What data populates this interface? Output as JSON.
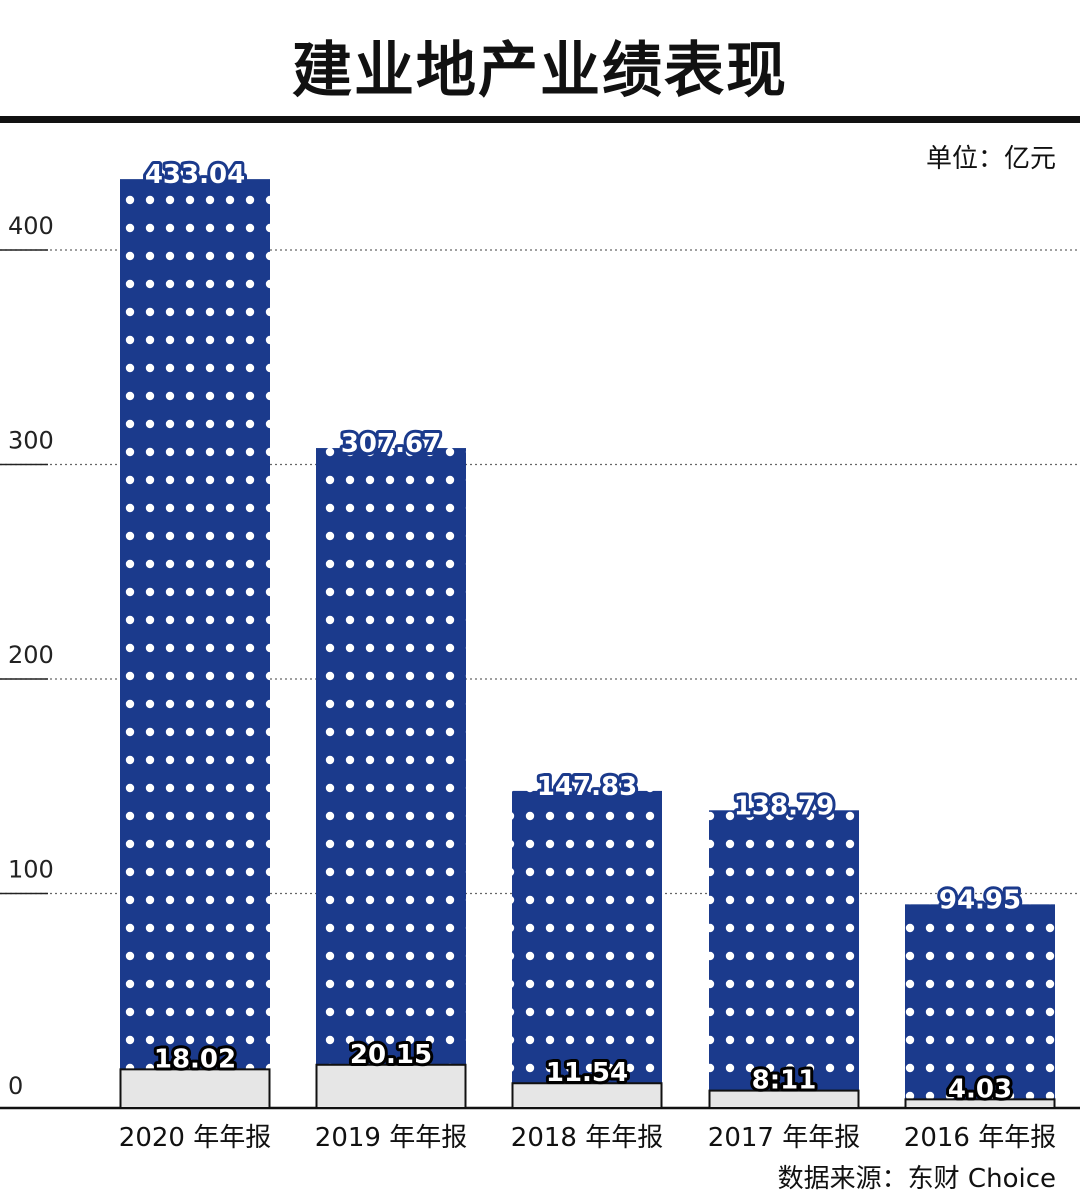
{
  "title": "建业地产业绩表现",
  "unit_label": "单位：亿元",
  "source_label": "数据来源：东财 Choice",
  "colors": {
    "revenue": "#1b3a8c",
    "profit": "#e6e6e6",
    "dots": "#ffffff"
  },
  "chart_data": {
    "type": "bar",
    "categories": [
      "2020 年年报",
      "2019 年年报",
      "2018 年年报",
      "2017 年年报",
      "2016 年年报"
    ],
    "series": [
      {
        "values": [
          433.04,
          307.67,
          147.83,
          138.79,
          94.95
        ]
      },
      {
        "values": [
          18.02,
          20.15,
          11.54,
          8.11,
          4.03
        ]
      }
    ],
    "value_labels": [
      [
        "433.04",
        "307.67",
        "147.83",
        "138.79",
        "94.95"
      ],
      [
        "18.02",
        "20.15",
        "11.54",
        "8:11",
        "4.03"
      ]
    ],
    "ylim": [
      0,
      450
    ],
    "yticks": [
      0,
      100,
      200,
      300,
      400
    ],
    "grid": true
  }
}
